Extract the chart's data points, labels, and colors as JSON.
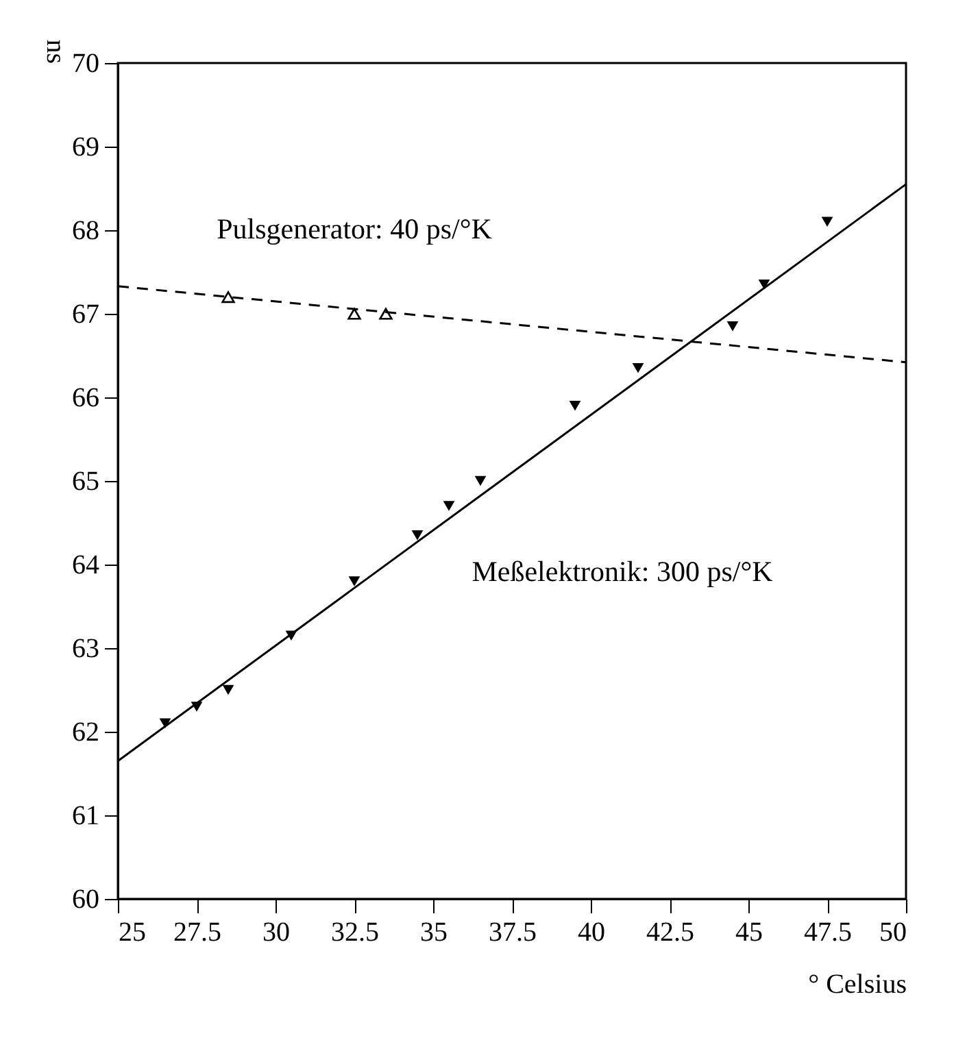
{
  "chart_data": {
    "type": "scatter",
    "xlabel": "° Celsius",
    "ylabel": "ns",
    "series": [
      {
        "type": "scatter",
        "marker": "triangle_down",
        "color": "#000000",
        "x": [
          26.5,
          27.5,
          28.5,
          30.5,
          32.5,
          34.5,
          35.5,
          36.5,
          39.5,
          41.5,
          44.5,
          45.5,
          47.5
        ],
        "values": [
          62.1,
          62.3,
          62.5,
          63.15,
          63.8,
          64.35,
          64.7,
          65.0,
          65.9,
          66.35,
          66.85,
          67.35,
          68.1
        ]
      },
      {
        "type": "scatter",
        "marker": "triangle_open",
        "color": "#000000",
        "x": [
          28.5,
          32.5,
          33.5
        ],
        "values": [
          67.2,
          67.0,
          67.0
        ]
      },
      {
        "type": "line",
        "line_style": "solid",
        "color": "#000000",
        "x": [
          25,
          50
        ],
        "values": [
          61.65,
          68.55
        ]
      },
      {
        "type": "line",
        "line_style": "dashed",
        "color": "#000000",
        "x": [
          25,
          50
        ],
        "values": [
          67.33,
          66.42
        ]
      }
    ],
    "annotations": [
      "Pulsgenerator: 40 ps/°K",
      "Meßelektronik: 300 ps/°K"
    ],
    "xlim": [
      25,
      50
    ],
    "ylim": [
      60,
      70
    ],
    "xticks": [
      25,
      {
        "value": 27.5,
        "label": "27.5"
      },
      30,
      {
        "value": 32.5,
        "label": "32.5"
      },
      35,
      {
        "value": 37.5,
        "label": "37.5"
      },
      40,
      {
        "value": 42.5,
        "label": "42.5"
      },
      45,
      {
        "value": 47.5,
        "label": "47.5"
      },
      50
    ],
    "yticks": [
      60,
      61,
      62,
      63,
      64,
      65,
      66,
      67,
      68,
      69,
      70
    ],
    "grid": false
  }
}
